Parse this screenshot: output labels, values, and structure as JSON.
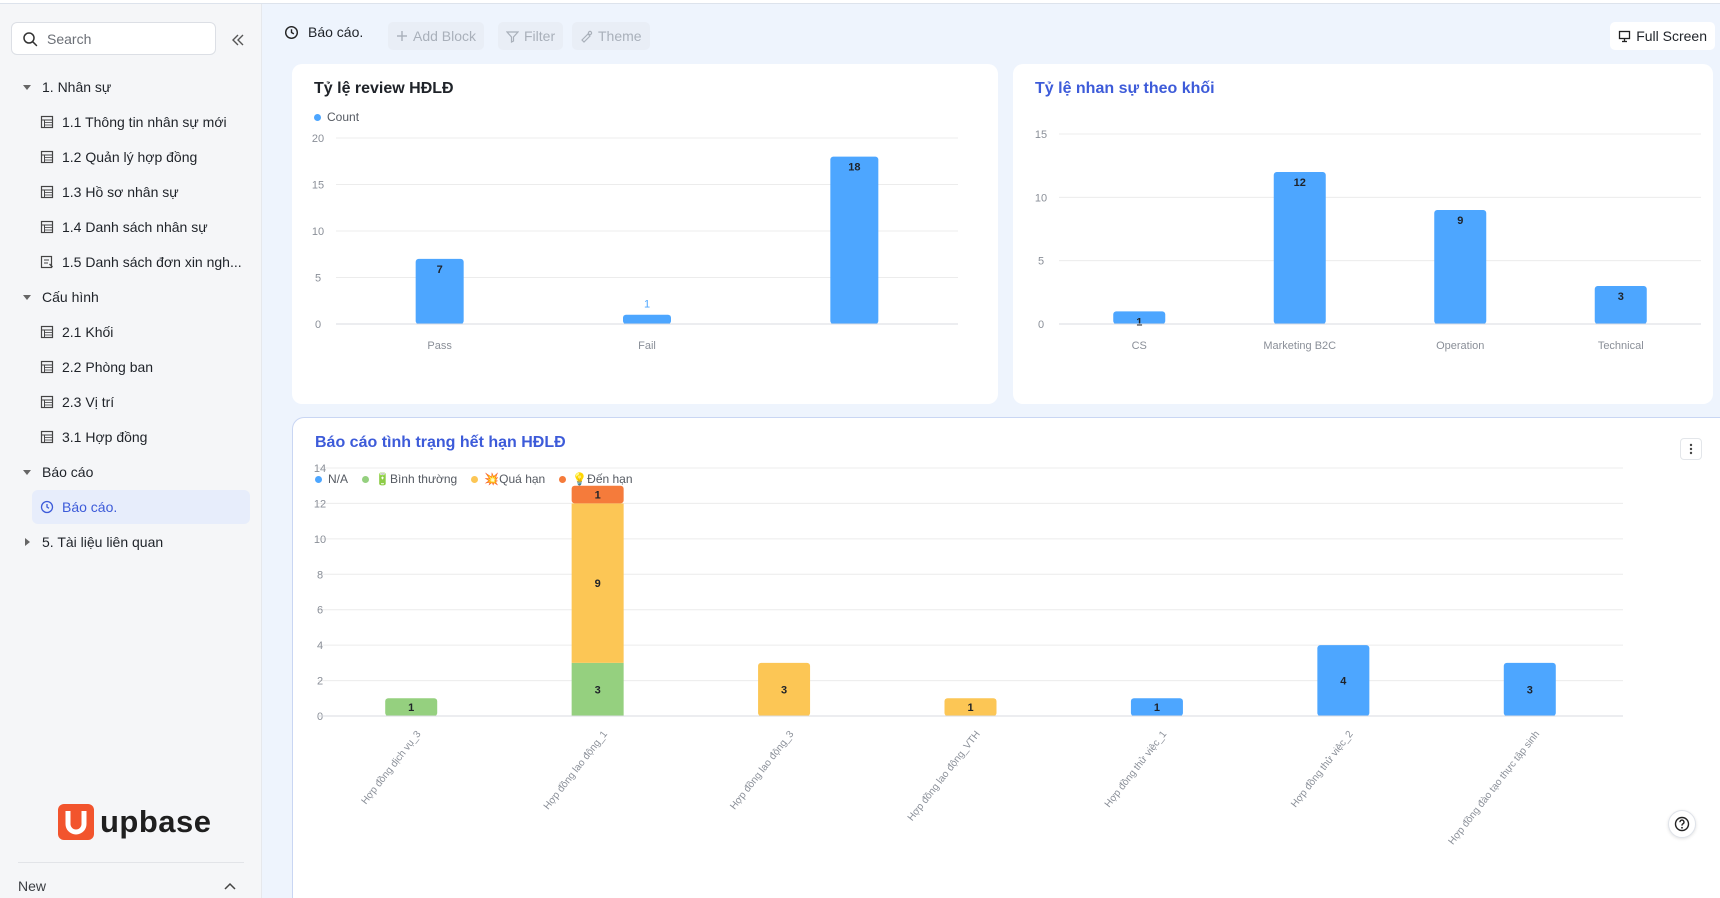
{
  "search": {
    "placeholder": "Search"
  },
  "sidebar": {
    "groups": [
      {
        "label": "1. Nhân sự",
        "expanded": true,
        "items": [
          {
            "label": "1.1 Thông tin nhân sự mới",
            "icon": "table-icon"
          },
          {
            "label": "1.2 Quản lý hợp đồng",
            "icon": "table-icon"
          },
          {
            "label": "1.3 Hồ sơ nhân sự",
            "icon": "table-icon"
          },
          {
            "label": "1.4 Danh sách nhân sự",
            "icon": "table-icon"
          },
          {
            "label": "1.5 Danh sách đơn xin ngh...",
            "icon": "form-icon"
          }
        ]
      },
      {
        "label": "Cấu hình",
        "expanded": true,
        "items": [
          {
            "label": "2.1 Khối",
            "icon": "table-icon"
          },
          {
            "label": "2.2 Phòng ban",
            "icon": "table-icon"
          },
          {
            "label": "2.3 Vị trí",
            "icon": "table-icon"
          },
          {
            "label": "3.1 Hợp đồng",
            "icon": "table-icon"
          }
        ]
      },
      {
        "label": "Báo cáo",
        "expanded": true,
        "items": [
          {
            "label": "Báo cáo.",
            "icon": "dashboard-icon",
            "active": true
          }
        ]
      },
      {
        "label": "5. Tài liệu liên quan",
        "expanded": false,
        "items": []
      }
    ],
    "brand": "upbase",
    "footer_label": "New"
  },
  "toolbar": {
    "title": "Báo cáo.",
    "add_block": "Add Block",
    "filter": "Filter",
    "theme": "Theme",
    "full_screen": "Full Screen"
  },
  "colors": {
    "accent": "#3d5bd9",
    "bar_blue": "#4da6ff",
    "green": "#95d07f",
    "yellow": "#fcc655",
    "orange": "#f57b3b",
    "brand_red": "#f2542d"
  },
  "chart_data": [
    {
      "type": "bar",
      "title": "Tỷ lệ review HĐLĐ",
      "categories": [
        "Pass",
        "Fail",
        ""
      ],
      "series": [
        {
          "name": "Count",
          "values": [
            7,
            1,
            18
          ]
        }
      ],
      "ylim": [
        0,
        20
      ],
      "yticks": [
        0,
        5,
        10,
        15,
        20
      ],
      "legend": "top-left",
      "grid": true
    },
    {
      "type": "bar",
      "title": "Tỷ lệ nhan sự theo khối",
      "categories": [
        "CS",
        "Marketing B2C",
        "Operation",
        "Technical"
      ],
      "series": [
        {
          "values": [
            1,
            12,
            9,
            3
          ]
        }
      ],
      "ylim": [
        0,
        15
      ],
      "yticks": [
        0,
        5,
        10,
        15
      ],
      "grid": true
    },
    {
      "type": "bar",
      "stacked": true,
      "title": "Báo cáo tình trạng hết hạn HĐLĐ",
      "categories": [
        "Hợp đồng dịch vụ_3",
        "Hợp đồng lao động_1",
        "Hợp đồng lao động_3",
        "Hợp đồng lao động_VTH",
        "Hợp đồng thử việc_1",
        "Hợp đồng thử việc_2",
        "Hợp đồng đào tạo thực tập sinh"
      ],
      "series": [
        {
          "name": "N/A",
          "color": "#4da6ff",
          "values": [
            0,
            0,
            0,
            0,
            1,
            4,
            3
          ]
        },
        {
          "name": "🔋Bình thường",
          "color": "#95d07f",
          "values": [
            1,
            3,
            0,
            0,
            0,
            0,
            0
          ]
        },
        {
          "name": "💥Quá hạn",
          "color": "#fcc655",
          "values": [
            0,
            9,
            3,
            1,
            0,
            0,
            0
          ]
        },
        {
          "name": "💡Đến hạn",
          "color": "#f57b3b",
          "values": [
            0,
            1,
            0,
            0,
            0,
            0,
            0
          ]
        }
      ],
      "ylim": [
        0,
        14
      ],
      "yticks": [
        0,
        2,
        4,
        6,
        8,
        10,
        12,
        14
      ],
      "legend": "top-left",
      "grid": true
    }
  ]
}
